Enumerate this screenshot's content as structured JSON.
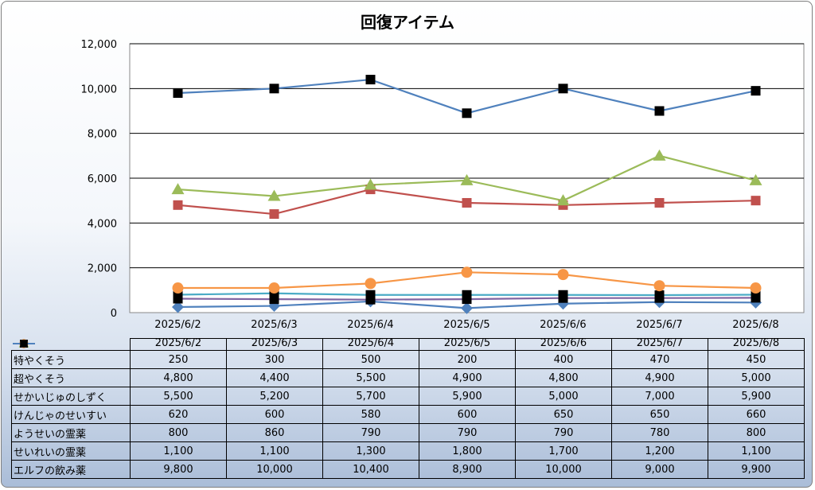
{
  "chart_data": {
    "type": "line",
    "title": "回復アイテム",
    "categories": [
      "2025/6/2",
      "2025/6/3",
      "2025/6/4",
      "2025/6/5",
      "2025/6/6",
      "2025/6/7",
      "2025/6/8"
    ],
    "y_tick_labels": [
      "0",
      "2,000",
      "4,000",
      "6,000",
      "8,000",
      "10,000",
      "12,000"
    ],
    "ylim": [
      0,
      12000
    ],
    "grid": true,
    "legend": "data-table",
    "series": [
      {
        "name": "特やくそう",
        "color": "#4f81bd",
        "marker": "diamond",
        "marker_color": "#4f81bd",
        "values": [
          250,
          300,
          500,
          200,
          400,
          470,
          450
        ],
        "labels": [
          "250",
          "300",
          "500",
          "200",
          "400",
          "470",
          "450"
        ]
      },
      {
        "name": "超やくそう",
        "color": "#c0504d",
        "marker": "square",
        "marker_color": "#c0504d",
        "values": [
          4800,
          4400,
          5500,
          4900,
          4800,
          4900,
          5000
        ],
        "labels": [
          "4,800",
          "4,400",
          "5,500",
          "4,900",
          "4,800",
          "4,900",
          "5,000"
        ]
      },
      {
        "name": "せかいじゅのしずく",
        "color": "#9bbb59",
        "marker": "triangle",
        "marker_color": "#9bbb59",
        "values": [
          5500,
          5200,
          5700,
          5900,
          5000,
          7000,
          5900
        ],
        "labels": [
          "5,500",
          "5,200",
          "5,700",
          "5,900",
          "5,000",
          "7,000",
          "5,900"
        ]
      },
      {
        "name": "けんじゃのせいすい",
        "color": "#8064a2",
        "marker": "square",
        "marker_color": "#000000",
        "values": [
          620,
          600,
          580,
          600,
          650,
          650,
          660
        ],
        "labels": [
          "620",
          "600",
          "580",
          "600",
          "650",
          "650",
          "660"
        ]
      },
      {
        "name": "ようせいの霊薬",
        "color": "#4bacc6",
        "marker": "square",
        "marker_color": "#000000",
        "values": [
          800,
          860,
          790,
          790,
          790,
          780,
          800
        ],
        "labels": [
          "800",
          "860",
          "790",
          "790",
          "790",
          "780",
          "800"
        ]
      },
      {
        "name": "せいれいの霊薬",
        "color": "#f79646",
        "marker": "circle",
        "marker_color": "#f79646",
        "values": [
          1100,
          1100,
          1300,
          1800,
          1700,
          1200,
          1100
        ],
        "labels": [
          "1,100",
          "1,100",
          "1,300",
          "1,800",
          "1,700",
          "1,200",
          "1,100"
        ]
      },
      {
        "name": "エルフの飲み薬",
        "color": "#4f81bd",
        "marker": "square",
        "marker_color": "#000000",
        "values": [
          9800,
          10000,
          10400,
          8900,
          10000,
          9000,
          9900
        ],
        "labels": [
          "9,800",
          "10,000",
          "10,400",
          "8,900",
          "10,000",
          "9,000",
          "9,900"
        ]
      }
    ]
  }
}
